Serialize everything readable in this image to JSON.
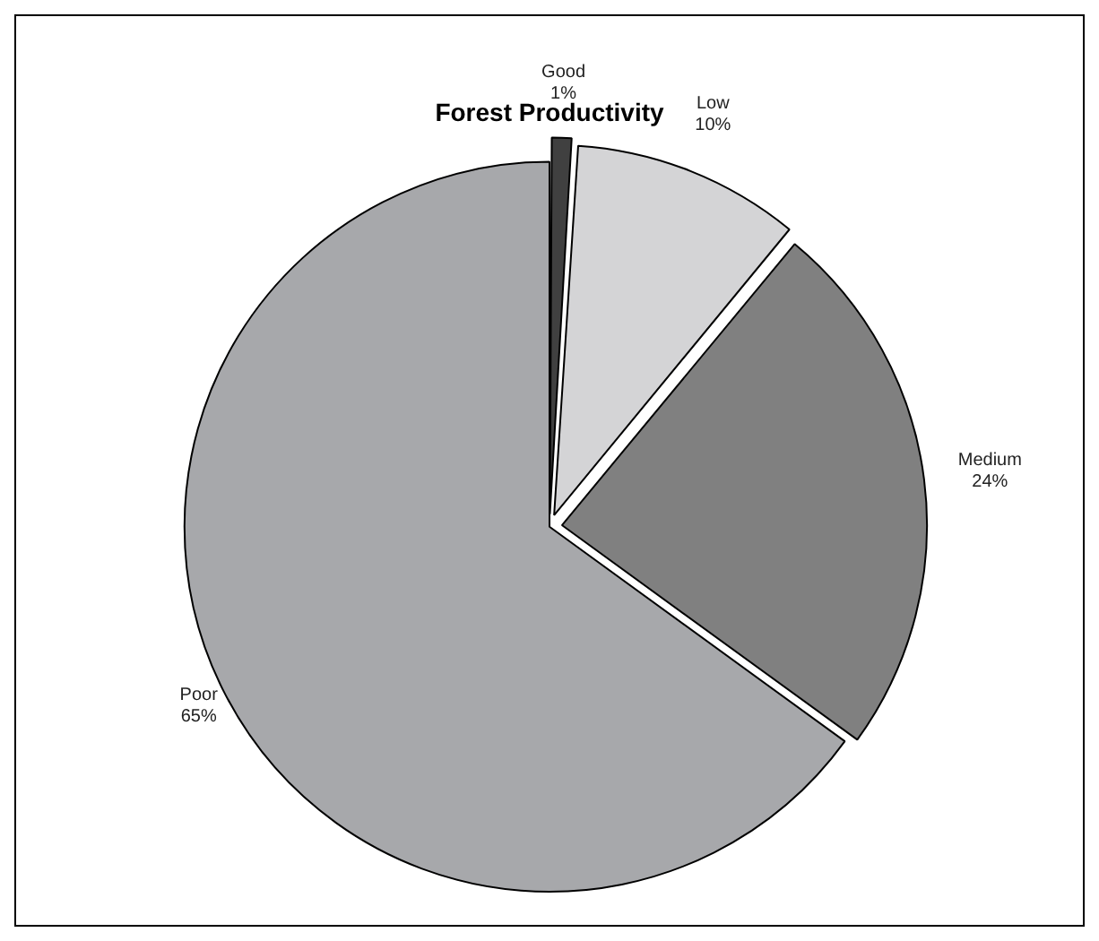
{
  "chart_data": {
    "type": "pie",
    "title": "Forest Productivity",
    "categories": [
      "Good",
      "Low",
      "Medium",
      "Poor"
    ],
    "values": [
      1,
      10,
      24,
      65
    ],
    "value_labels": [
      "1%",
      "10%",
      "24%",
      "65%"
    ],
    "colors": [
      "#404040",
      "#d4d4d6",
      "#808080",
      "#a7a8ab"
    ],
    "legend": false
  }
}
